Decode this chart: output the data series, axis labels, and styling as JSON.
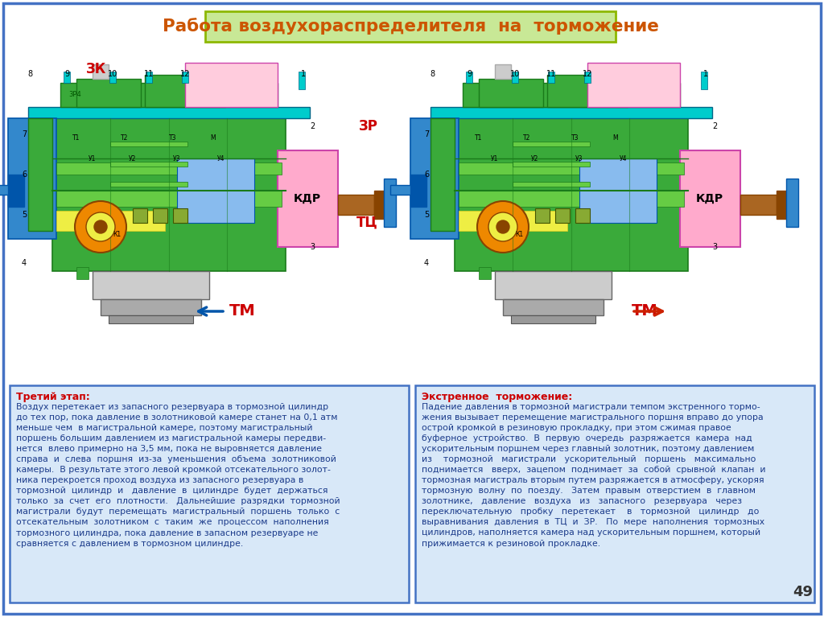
{
  "title": "Работа воздухораспределителя  на  торможение",
  "title_bg_color": "#c8e896",
  "title_border_color": "#8db800",
  "title_text_color": "#cc5500",
  "slide_bg_color": "#ffffff",
  "slide_border_color": "#4472c4",
  "left_box_title": "Третий этап:",
  "left_box_title_color": "#cc0000",
  "left_box_text": "Воздух перетекает из запасного резервуара в тормозной цилиндр\nдо тех пор, пока давление в золотниковой камере станет на 0,1 атм\nменьше чем  в магистральной камере, поэтому магистральный\nпоршень большим давлением из магистральной камеры передви-\nнется  влево примерно на 3,5 мм, пока не выровняется давление\nсправа  и  слева  поршня  из-за  уменьшения  объема  золотниковой\nкамеры.  В результате этого левой кромкой отсекательного золот-\nника перекроется проход воздуха из запасного резервуара в\nтормозной  цилиндр  и   давление  в  цилиндре  будет  держаться\nтолько  за  счет  его  плотности.   Дальнейшие  разрядки  тормозной\nмагистрали  будут  перемещать  магистральный  поршень  только  с\nотсекательным  золотником  с  таким  же  процессом  наполнения\nтормозного цилиндра, пока давление в запасном резервуаре не\nсравняется с давлением в тормозном цилиндре.",
  "left_box_text_color": "#1a3a8a",
  "left_box_bg": "#d8e8f8",
  "left_box_border": "#4472c4",
  "right_box_title": "Экстренное  торможение:",
  "right_box_title_color": "#cc0000",
  "right_box_text": "Падение давления в тормозной магистрали темпом экстренного тормо-\nжения вызывает перемещение магистрального поршня вправо до упора\nострой кромкой в резиновую прокладку, при этом сжимая правое\nбуферное  устройство.  В  первую  очередь  разряжается  камера  над\nускорительным поршнем через главный золотник, поэтому давлением\nиз    тормозной   магистрали   ускорительный   поршень   максимально\nподнимается   вверх,  зацепом  поднимает  за  собой  срывной  клапан  и\nтормозная магистраль вторым путем разряжается в атмосферу, ускоряя\nтормозную  волну  по  поезду.   Затем  правым  отверстием  в  главном\nзолотнике,   давление   воздуха   из   запасного   резервуара   через\nпереключательную   пробку   перетекает    в   тормозной   цилиндр   до\nвыравнивания  давления  в  ТЦ  и  ЗР.   По  мере  наполнения  тормозных\nцилиндров, наполняется камера над ускорительным поршнем, который\nприжимается к резиновой прокладке.",
  "right_box_text_color": "#1a3a8a",
  "right_box_bg": "#d8e8f8",
  "right_box_border": "#4472c4",
  "page_number": "49"
}
